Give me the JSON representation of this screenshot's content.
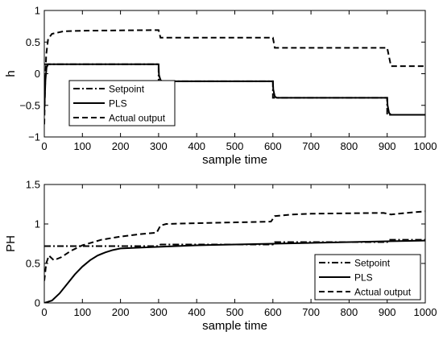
{
  "chart_data": [
    {
      "type": "line",
      "xlabel": "sample time",
      "ylabel": "h",
      "xlim": [
        0,
        1000
      ],
      "ylim": [
        -1,
        1
      ],
      "xticks": [
        0,
        100,
        200,
        300,
        400,
        500,
        600,
        700,
        800,
        900,
        1000
      ],
      "yticks": [
        -1,
        -0.5,
        0,
        0.5,
        1
      ],
      "legend_position": "bottom-left",
      "series": [
        {
          "name": "Setpoint",
          "style": "dashdot",
          "points": [
            [
              0,
              0.15
            ],
            [
              300,
              0.15
            ],
            [
              300,
              -0.12
            ],
            [
              600,
              -0.12
            ],
            [
              600,
              -0.38
            ],
            [
              900,
              -0.38
            ],
            [
              900,
              -0.65
            ],
            [
              1000,
              -0.65
            ]
          ]
        },
        {
          "name": "PLS",
          "style": "solid",
          "points": [
            [
              0,
              -0.6
            ],
            [
              3,
              -0.1
            ],
            [
              6,
              0.1
            ],
            [
              10,
              0.15
            ],
            [
              300,
              0.15
            ],
            [
              301,
              -0.02
            ],
            [
              305,
              -0.1
            ],
            [
              310,
              -0.12
            ],
            [
              600,
              -0.12
            ],
            [
              601,
              -0.25
            ],
            [
              605,
              -0.36
            ],
            [
              610,
              -0.38
            ],
            [
              900,
              -0.38
            ],
            [
              901,
              -0.5
            ],
            [
              905,
              -0.62
            ],
            [
              910,
              -0.65
            ],
            [
              1000,
              -0.65
            ]
          ]
        },
        {
          "name": "Actual output",
          "style": "dashed",
          "points": [
            [
              0,
              -0.8
            ],
            [
              2,
              -0.2
            ],
            [
              5,
              0.3
            ],
            [
              10,
              0.55
            ],
            [
              20,
              0.63
            ],
            [
              50,
              0.67
            ],
            [
              100,
              0.68
            ],
            [
              300,
              0.69
            ],
            [
              305,
              0.57
            ],
            [
              600,
              0.57
            ],
            [
              605,
              0.41
            ],
            [
              900,
              0.41
            ],
            [
              910,
              0.12
            ],
            [
              1000,
              0.12
            ]
          ]
        }
      ]
    },
    {
      "type": "line",
      "xlabel": "sample time",
      "ylabel": "PH",
      "xlim": [
        0,
        1000
      ],
      "ylim": [
        0,
        1.5
      ],
      "xticks": [
        0,
        100,
        200,
        300,
        400,
        500,
        600,
        700,
        800,
        900,
        1000
      ],
      "yticks": [
        0,
        0.5,
        1,
        1.5
      ],
      "legend_position": "bottom-right",
      "series": [
        {
          "name": "Setpoint",
          "style": "dashdot",
          "points": [
            [
              0,
              0.72
            ],
            [
              300,
              0.72
            ],
            [
              305,
              0.74
            ],
            [
              600,
              0.74
            ],
            [
              605,
              0.77
            ],
            [
              900,
              0.77
            ],
            [
              905,
              0.8
            ],
            [
              1000,
              0.8
            ]
          ]
        },
        {
          "name": "PLS",
          "style": "solid",
          "points": [
            [
              0,
              0.0
            ],
            [
              20,
              0.03
            ],
            [
              40,
              0.12
            ],
            [
              60,
              0.24
            ],
            [
              80,
              0.36
            ],
            [
              100,
              0.46
            ],
            [
              120,
              0.54
            ],
            [
              140,
              0.6
            ],
            [
              160,
              0.64
            ],
            [
              180,
              0.67
            ],
            [
              200,
              0.69
            ],
            [
              250,
              0.7
            ],
            [
              300,
              0.71
            ],
            [
              400,
              0.73
            ],
            [
              500,
              0.74
            ],
            [
              600,
              0.75
            ],
            [
              700,
              0.76
            ],
            [
              800,
              0.77
            ],
            [
              900,
              0.78
            ],
            [
              1000,
              0.79
            ]
          ]
        },
        {
          "name": "Actual output",
          "style": "dashed",
          "points": [
            [
              0,
              0.28
            ],
            [
              5,
              0.5
            ],
            [
              12,
              0.6
            ],
            [
              25,
              0.54
            ],
            [
              45,
              0.58
            ],
            [
              70,
              0.66
            ],
            [
              100,
              0.73
            ],
            [
              150,
              0.8
            ],
            [
              200,
              0.84
            ],
            [
              250,
              0.87
            ],
            [
              295,
              0.89
            ],
            [
              305,
              0.98
            ],
            [
              320,
              1.0
            ],
            [
              400,
              1.01
            ],
            [
              500,
              1.02
            ],
            [
              595,
              1.03
            ],
            [
              605,
              1.1
            ],
            [
              650,
              1.12
            ],
            [
              700,
              1.13
            ],
            [
              890,
              1.14
            ],
            [
              910,
              1.12
            ],
            [
              950,
              1.14
            ],
            [
              1000,
              1.16
            ]
          ]
        }
      ]
    }
  ]
}
